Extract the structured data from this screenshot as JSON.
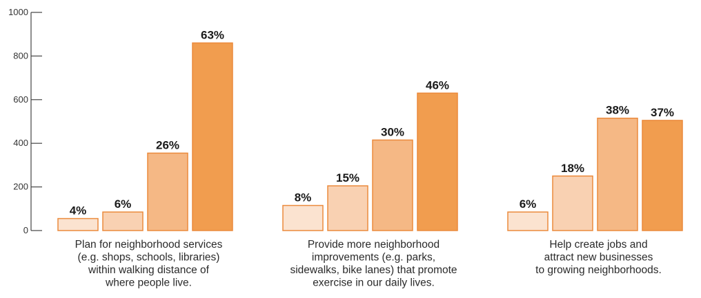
{
  "chart_data": {
    "type": "bar",
    "title": "",
    "xlabel": "",
    "ylabel": "",
    "ylim": [
      0,
      1000
    ],
    "yticks": [
      0,
      200,
      400,
      600,
      800,
      1000
    ],
    "ytick_labels": [
      "0",
      "200",
      "400",
      "600",
      "800",
      "1000"
    ],
    "grid": false,
    "legend": "none",
    "categories": [
      [
        "Plan for neighborhood services",
        "(e.g. shops, schools, libraries)",
        "within walking distance of",
        "where people live."
      ],
      [
        "Provide more neighborhood",
        "improvements (e.g. parks,",
        "sidewalks, bike lanes) that promote",
        "exercise in our daily lives."
      ],
      [
        "Help create jobs and",
        "attract new businesses",
        "to growing neighborhoods."
      ]
    ],
    "series": [
      {
        "values": [
          55,
          115,
          85
        ],
        "labels": [
          "4%",
          "8%",
          "6%"
        ],
        "color": "#fbe3d0"
      },
      {
        "values": [
          85,
          205,
          250
        ],
        "labels": [
          "6%",
          "15%",
          "18%"
        ],
        "color": "#f9d1b2"
      },
      {
        "values": [
          355,
          415,
          515
        ],
        "labels": [
          "26%",
          "30%",
          "38%"
        ],
        "color": "#f5b885"
      },
      {
        "values": [
          860,
          630,
          505
        ],
        "labels": [
          "63%",
          "46%",
          "37%"
        ],
        "color": "#f19d4f"
      }
    ],
    "bar_stroke_color": "#eb8a3c",
    "axis_color": "#444444"
  }
}
